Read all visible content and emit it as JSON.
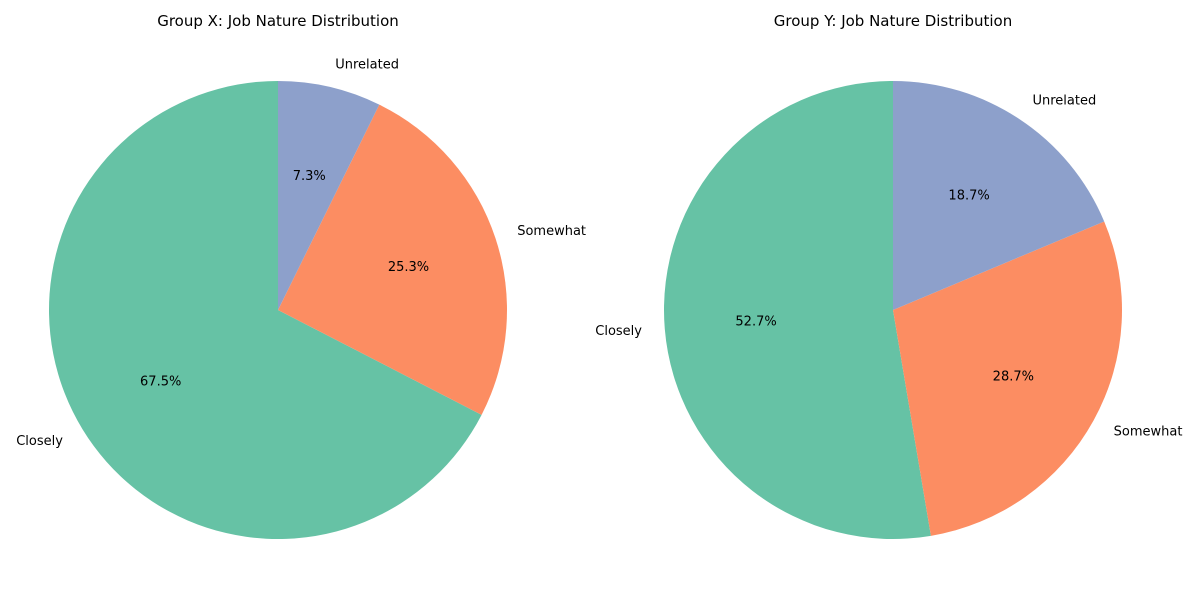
{
  "chart_data": [
    {
      "type": "pie",
      "title": "Group X: Job Nature Distribution",
      "labels": [
        "Closely",
        "Somewhat",
        "Unrelated"
      ],
      "values": [
        67.5,
        25.3,
        7.3
      ],
      "value_labels": [
        "67.5%",
        "25.3%",
        "7.3%"
      ],
      "colors": [
        "#66c2a5",
        "#fc8d62",
        "#8da0cb"
      ],
      "start_angle_deg": 90,
      "direction": "counterclockwise"
    },
    {
      "type": "pie",
      "title": "Group Y: Job Nature Distribution",
      "labels": [
        "Closely",
        "Somewhat",
        "Unrelated"
      ],
      "values": [
        52.7,
        28.7,
        18.7
      ],
      "value_labels": [
        "52.7%",
        "28.7%",
        "18.7%"
      ],
      "colors": [
        "#66c2a5",
        "#fc8d62",
        "#8da0cb"
      ],
      "start_angle_deg": 90,
      "direction": "counterclockwise"
    }
  ]
}
